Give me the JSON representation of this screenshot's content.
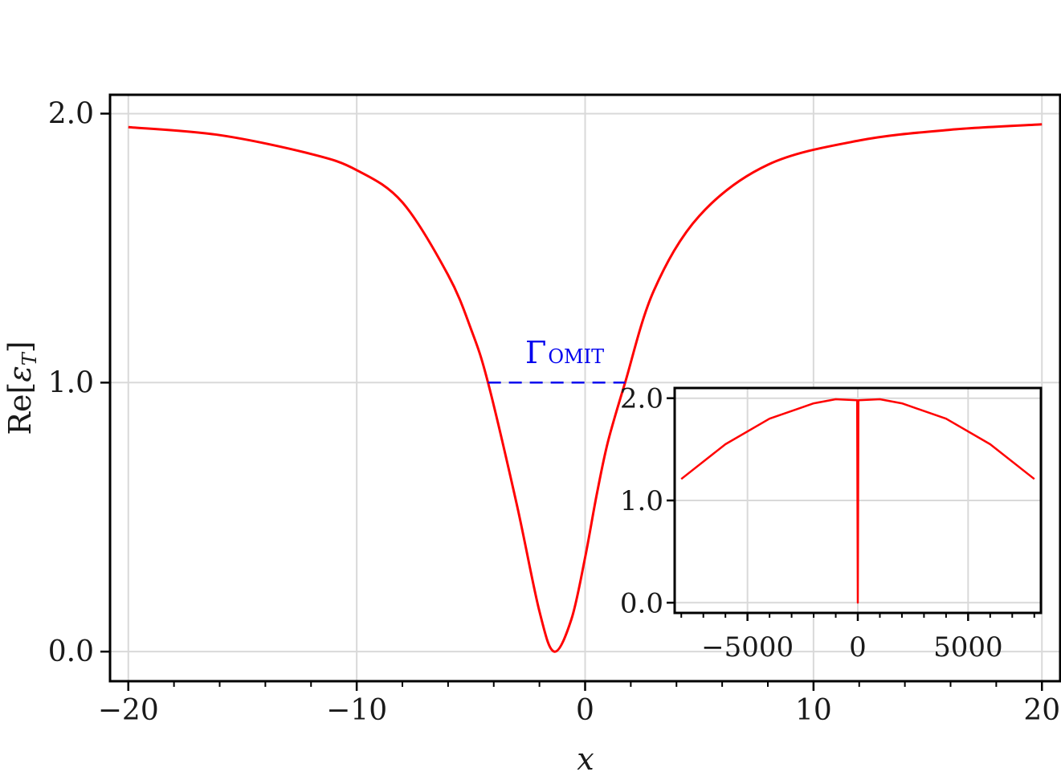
{
  "chart_data": [
    {
      "type": "line",
      "xlabel": "x",
      "ylabel": "Re[ε_T]",
      "ylabel_main": "Re[",
      "ylabel_eps": "ε",
      "ylabel_sub": "T",
      "ylabel_close": "]",
      "xlim": [
        -20.8,
        20.8
      ],
      "ylim": [
        -0.11,
        2.07
      ],
      "xticks": [
        -20,
        -10,
        0,
        10,
        20
      ],
      "xtick_labels": [
        "−20",
        "−10",
        "0",
        "10",
        "20"
      ],
      "yticks": [
        0.0,
        1.0,
        2.0
      ],
      "ytick_labels": [
        "0.0",
        "1.0",
        "2.0"
      ],
      "grid": true,
      "series": [
        {
          "color": "#ff0000",
          "x": [
            -20,
            -16,
            -12,
            -10,
            -8,
            -6,
            -5,
            -4.25,
            -3,
            -2,
            -1.35,
            -0.6,
            0,
            0.5,
            1,
            1.75,
            3,
            5,
            8,
            12,
            16,
            20
          ],
          "values": [
            1.95,
            1.92,
            1.85,
            1.79,
            1.67,
            1.4,
            1.2,
            1.0,
            0.55,
            0.15,
            0.0,
            0.12,
            0.35,
            0.58,
            0.78,
            1.0,
            1.34,
            1.62,
            1.81,
            1.9,
            1.94,
            1.96
          ]
        }
      ],
      "annotation": {
        "label_main": "Γ",
        "label_sub": "OMIT",
        "color": "#0000ee",
        "x_start": -4.25,
        "x_end": 1.75,
        "y": 1.0
      }
    },
    {
      "type": "line",
      "inset": true,
      "xlim": [
        -8300,
        8300
      ],
      "ylim": [
        -0.1,
        2.1
      ],
      "xticks": [
        -5000,
        0,
        5000
      ],
      "xtick_labels": [
        "−5000",
        "0",
        "5000"
      ],
      "yticks": [
        0.0,
        1.0,
        2.0
      ],
      "ytick_labels": [
        "0.0",
        "1.0",
        "2.0"
      ],
      "grid": true,
      "series": [
        {
          "color": "#ff0000",
          "x": [
            -8000,
            -6000,
            -4000,
            -2000,
            -1000,
            -30,
            -1.35,
            30,
            1000,
            2000,
            4000,
            6000,
            8000
          ],
          "values": [
            1.21,
            1.55,
            1.8,
            1.95,
            1.99,
            1.98,
            0.0,
            1.98,
            1.99,
            1.95,
            1.8,
            1.55,
            1.21
          ]
        }
      ]
    }
  ]
}
